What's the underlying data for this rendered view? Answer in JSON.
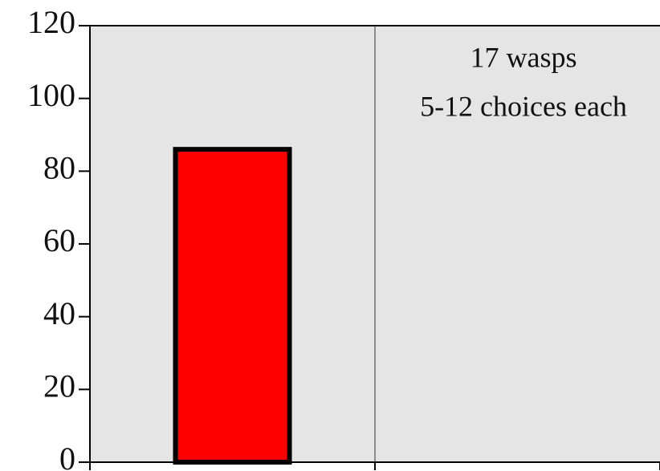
{
  "chart_data": {
    "type": "bar",
    "categories": [
      null,
      null
    ],
    "values": [
      86,
      null
    ],
    "color": "#ff0000",
    "annotations": [
      "17 wasps",
      "5-12 choices each"
    ],
    "ylim": [
      0,
      120
    ],
    "yticks": [
      0,
      20,
      40,
      60,
      80,
      100,
      120
    ],
    "grid": false
  }
}
